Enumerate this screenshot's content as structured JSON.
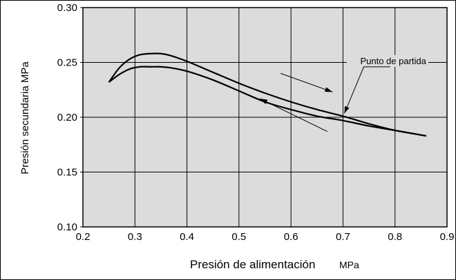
{
  "chart_data": {
    "type": "line",
    "xlabel": "Presión de alimentación",
    "xlabel_unit": "MPa",
    "ylabel": "Presión secundaria MPa",
    "xlim": [
      0.2,
      0.9
    ],
    "ylim": [
      0.1,
      0.3
    ],
    "x_ticks": [
      "0.2",
      "0.3",
      "0.4",
      "0.5",
      "0.6",
      "0.7",
      "0.8",
      "0.9"
    ],
    "y_ticks": [
      "0.10",
      "0.15",
      "0.20",
      "0.25",
      "0.30"
    ],
    "grid": true,
    "background_color": "#dcdcdc",
    "line_color": "#000000",
    "series": [
      {
        "x": [
          0.25,
          0.27,
          0.29,
          0.31,
          0.33,
          0.35,
          0.37,
          0.4,
          0.45,
          0.5,
          0.55,
          0.6,
          0.65,
          0.7,
          0.75,
          0.8,
          0.86
        ],
        "y": [
          0.232,
          0.245,
          0.253,
          0.257,
          0.258,
          0.258,
          0.256,
          0.251,
          0.241,
          0.231,
          0.222,
          0.214,
          0.207,
          0.201,
          0.194,
          0.188,
          0.183
        ]
      },
      {
        "x": [
          0.25,
          0.27,
          0.29,
          0.31,
          0.33,
          0.35,
          0.37,
          0.4,
          0.45,
          0.5,
          0.55,
          0.6,
          0.65,
          0.7,
          0.75,
          0.8,
          0.86
        ],
        "y": [
          0.232,
          0.239,
          0.244,
          0.246,
          0.246,
          0.246,
          0.245,
          0.242,
          0.234,
          0.224,
          0.214,
          0.207,
          0.201,
          0.197,
          0.192,
          0.188,
          0.183
        ]
      }
    ],
    "annotations": [
      {
        "text": "Punto de partida",
        "x": 0.7,
        "y": 0.201
      }
    ],
    "arrows": [
      {
        "direction": "increasing",
        "from": [
          0.58,
          0.24
        ],
        "to": [
          0.68,
          0.223
        ]
      },
      {
        "direction": "decreasing",
        "from": [
          0.67,
          0.187
        ],
        "to": [
          0.54,
          0.217
        ]
      }
    ]
  }
}
